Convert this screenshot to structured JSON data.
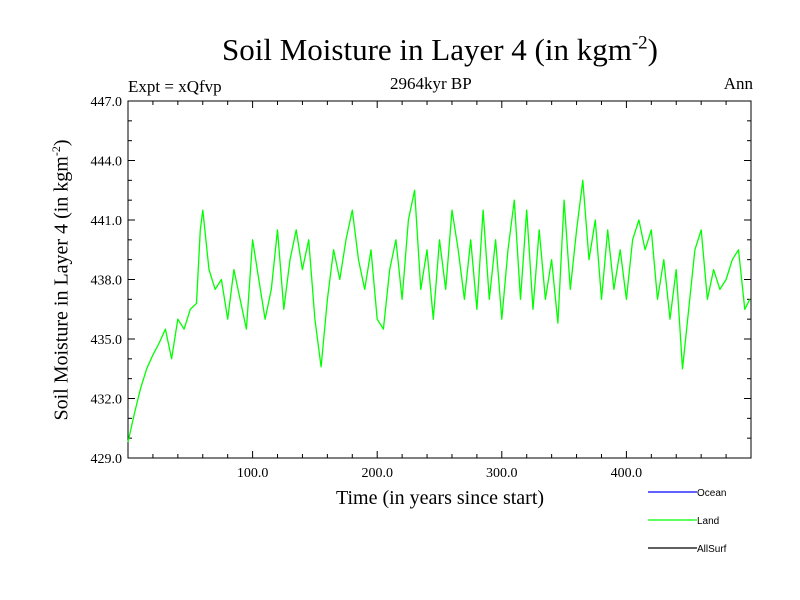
{
  "header": {
    "title_main": "Soil Moisture in Layer 4 (in kgm",
    "title_sup": "-2",
    "title_close": ")",
    "expt": "Expt = xQfvp",
    "subtitle": "2964kyr BP",
    "season": "Ann"
  },
  "chart_data": {
    "type": "line",
    "title": "Soil Moisture in Layer 4 (in kgm-2)",
    "xlabel": "Time (in years since start)",
    "ylabel": "Soil Moisture in Layer 4 (in kgm-2)",
    "ylabel_main": "Soil Moisture in Layer 4 (in kgm",
    "ylabel_sup": "-2",
    "ylabel_close": ")",
    "xlim": [
      0,
      500
    ],
    "ylim": [
      429.0,
      447.0
    ],
    "x_ticks": [
      100,
      200,
      300,
      400
    ],
    "x_tick_labels": [
      "100.0",
      "200.0",
      "300.0",
      "400.0"
    ],
    "y_ticks": [
      429,
      432,
      435,
      438,
      441,
      444,
      447
    ],
    "y_tick_labels": [
      "429.0",
      "432.0",
      "435.0",
      "438.0",
      "441.0",
      "444.0",
      "447.0"
    ],
    "grid": false,
    "legend_position": "bottom-right",
    "series": [
      {
        "name": "Ocean",
        "color": "#0000ff",
        "x": [],
        "y": []
      },
      {
        "name": "Land",
        "color": "#00ff00",
        "x": [
          0,
          5,
          10,
          15,
          20,
          25,
          30,
          35,
          40,
          45,
          50,
          55,
          58,
          60,
          65,
          70,
          75,
          80,
          85,
          90,
          95,
          100,
          105,
          110,
          115,
          120,
          125,
          130,
          135,
          140,
          145,
          150,
          155,
          160,
          165,
          170,
          175,
          180,
          185,
          190,
          195,
          200,
          205,
          210,
          215,
          220,
          225,
          230,
          235,
          240,
          245,
          250,
          255,
          260,
          265,
          270,
          275,
          280,
          285,
          290,
          295,
          300,
          305,
          310,
          315,
          320,
          325,
          330,
          335,
          340,
          345,
          350,
          355,
          360,
          365,
          370,
          375,
          380,
          385,
          390,
          395,
          400,
          405,
          410,
          415,
          420,
          425,
          430,
          435,
          440,
          445,
          450,
          455,
          460,
          465,
          470,
          475,
          480,
          485,
          490,
          495,
          499
        ],
        "y": [
          429.8,
          431.2,
          432.5,
          433.5,
          434.2,
          434.8,
          435.5,
          434.0,
          436.0,
          435.5,
          436.5,
          436.8,
          440.5,
          441.5,
          438.5,
          437.5,
          438.0,
          436.0,
          438.5,
          437.0,
          435.5,
          440.0,
          438.0,
          436.0,
          437.5,
          440.5,
          436.5,
          439.0,
          440.5,
          438.5,
          440.0,
          436.0,
          433.6,
          437.0,
          439.5,
          438.0,
          440.0,
          441.5,
          439.0,
          437.5,
          439.5,
          436.0,
          435.5,
          438.5,
          440.0,
          437.0,
          441.0,
          442.5,
          437.5,
          439.5,
          436.0,
          440.0,
          437.5,
          441.5,
          439.5,
          437.0,
          440.0,
          436.5,
          441.5,
          437.0,
          440.0,
          436.0,
          439.5,
          442.0,
          437.0,
          441.5,
          436.5,
          440.5,
          437.0,
          439.0,
          435.8,
          442.0,
          437.5,
          440.5,
          443.0,
          439.0,
          441.0,
          437.0,
          440.5,
          437.5,
          439.5,
          437.0,
          440.0,
          441.0,
          439.5,
          440.5,
          437.0,
          439.0,
          436.0,
          438.5,
          433.5,
          436.5,
          439.5,
          440.5,
          437.0,
          438.5,
          437.5,
          438.0,
          439.0,
          439.5,
          436.5,
          437.0
        ]
      },
      {
        "name": "AllSurf",
        "color": "#000000",
        "x": [],
        "y": []
      }
    ]
  }
}
